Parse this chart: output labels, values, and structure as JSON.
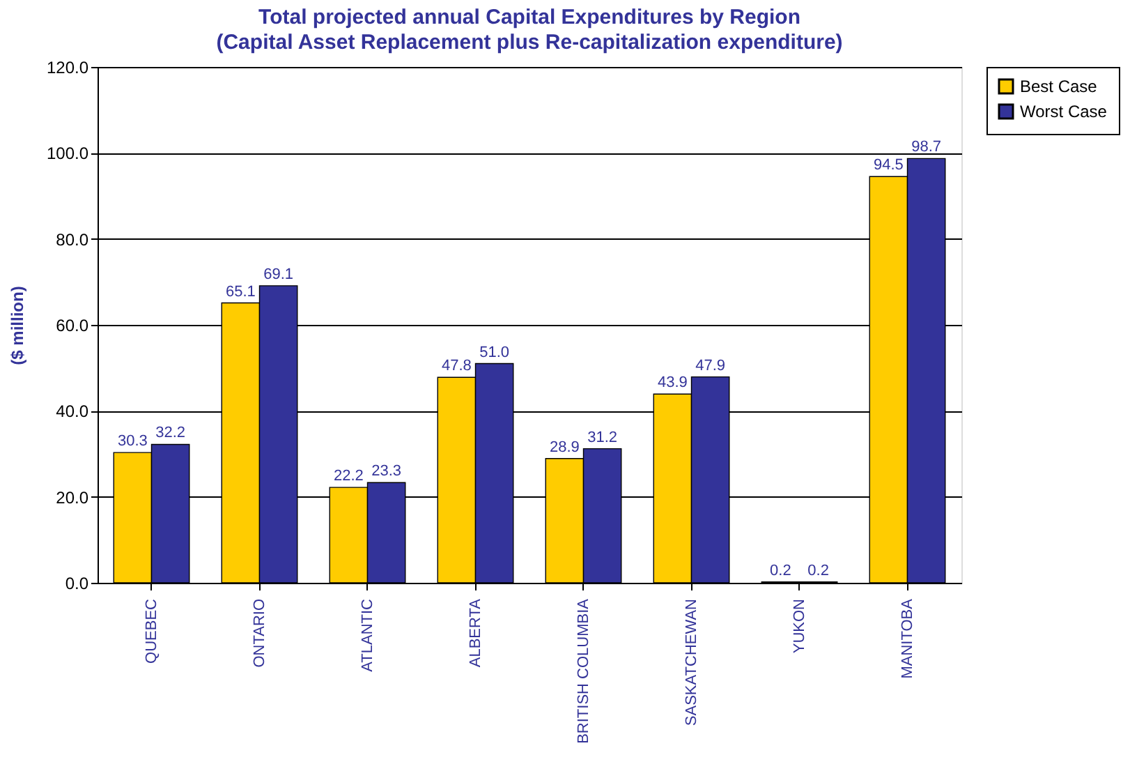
{
  "chart_data": {
    "type": "bar",
    "title": "Total projected annual Capital Expenditures by Region",
    "subtitle": "(Capital Asset Replacement plus Re-capitalization expenditure)",
    "ylabel": "($ million)",
    "categories": [
      "QUEBEC",
      "ONTARIO",
      "ATLANTIC",
      "ALBERTA",
      "BRITISH COLUMBIA",
      "SASKATCHEWAN",
      "YUKON",
      "MANITOBA"
    ],
    "series": [
      {
        "name": "Best Case",
        "color": "#ffcc00",
        "values": [
          30.3,
          65.1,
          22.2,
          47.8,
          28.9,
          43.9,
          0.2,
          94.5
        ],
        "value_labels": [
          "30.3",
          "65.1",
          "22.2",
          "47.8",
          "28.9",
          "43.9",
          "0.2",
          "94.5"
        ]
      },
      {
        "name": "Worst Case",
        "color": "#333399",
        "values": [
          32.2,
          69.1,
          23.3,
          51.0,
          31.2,
          47.9,
          0.2,
          98.7
        ],
        "value_labels": [
          "32.2",
          "69.1",
          "23.3",
          "51.0",
          "31.2",
          "47.9",
          "0.2",
          "98.7"
        ]
      }
    ],
    "ylim": [
      0,
      120
    ],
    "yticks": [
      {
        "value": 0,
        "label": "0.0"
      },
      {
        "value": 20,
        "label": "20.0"
      },
      {
        "value": 40,
        "label": "40.0"
      },
      {
        "value": 60,
        "label": "60.0"
      },
      {
        "value": 80,
        "label": "80.0"
      },
      {
        "value": 100,
        "label": "100.0"
      },
      {
        "value": 120,
        "label": "120.0"
      }
    ],
    "grid": "y",
    "legend": "right"
  }
}
